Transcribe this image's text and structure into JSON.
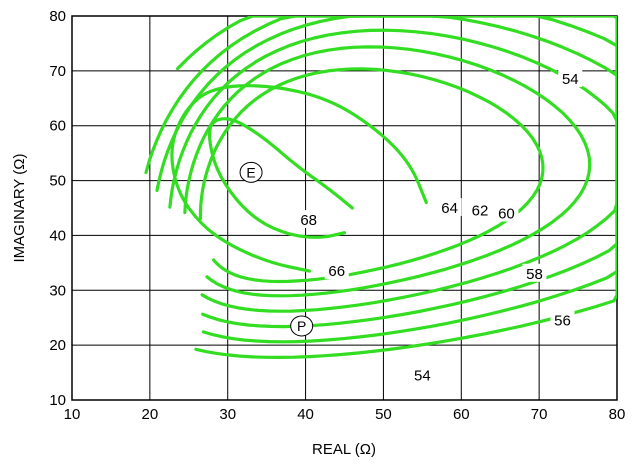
{
  "chart_data": {
    "type": "contour",
    "xlabel": "REAL (Ω)",
    "ylabel": "IMAGINARY (Ω)",
    "xlim": [
      10,
      80
    ],
    "ylim": [
      10,
      80
    ],
    "xticks": [
      10,
      20,
      30,
      40,
      50,
      60,
      70,
      80
    ],
    "yticks": [
      10,
      20,
      30,
      40,
      50,
      60,
      70,
      80
    ],
    "grid": true,
    "line_color": "#33dd22",
    "contours": [
      {
        "level": 68,
        "label": "68",
        "label_at": [
          40.4,
          42.8
        ],
        "points": [
          [
            46,
            45
          ],
          [
            43,
            48.5
          ],
          [
            39,
            52.5
          ],
          [
            34.5,
            58
          ],
          [
            30.5,
            61.5
          ],
          [
            28,
            61
          ],
          [
            27.5,
            58
          ],
          [
            28.5,
            52
          ],
          [
            31,
            46.5
          ],
          [
            34,
            42.5
          ],
          [
            38,
            40
          ],
          [
            42,
            39.5
          ],
          [
            45,
            40.5
          ]
        ]
      },
      {
        "level": 66,
        "label": "66",
        "label_at": [
          44,
          33.5
        ],
        "points": [
          [
            55.5,
            46
          ],
          [
            53.5,
            53
          ],
          [
            49.5,
            59
          ],
          [
            43,
            65
          ],
          [
            35,
            67.5
          ],
          [
            28,
            67
          ],
          [
            24.5,
            63
          ],
          [
            22.5,
            56
          ],
          [
            23.5,
            48
          ],
          [
            26.5,
            42
          ],
          [
            30.5,
            38
          ],
          [
            35.5,
            35
          ],
          [
            40.5,
            33.5
          ]
        ]
      },
      {
        "level": 64,
        "label": "64",
        "label_at": [
          58.5,
          45
        ]
      },
      {
        "level": 62,
        "label": "62",
        "label_at": [
          62.4,
          44.5
        ]
      },
      {
        "level": 60,
        "label": "60",
        "label_at": [
          65.8,
          44
        ]
      },
      {
        "level": 58,
        "label": "58",
        "label_at": [
          69.4,
          33
        ]
      },
      {
        "level": 56,
        "label": "56",
        "label_at": [
          73,
          24.5
        ]
      },
      {
        "level": 54,
        "label": "54",
        "label_at": [
          74,
          68.5
        ]
      },
      {
        "level": 54,
        "label": "54",
        "label_at": [
          55,
          14.5
        ]
      }
    ],
    "markers": [
      {
        "label": "E",
        "x": 33,
        "y": 51.5
      },
      {
        "label": "P",
        "x": 39.5,
        "y": 23.5
      }
    ]
  }
}
